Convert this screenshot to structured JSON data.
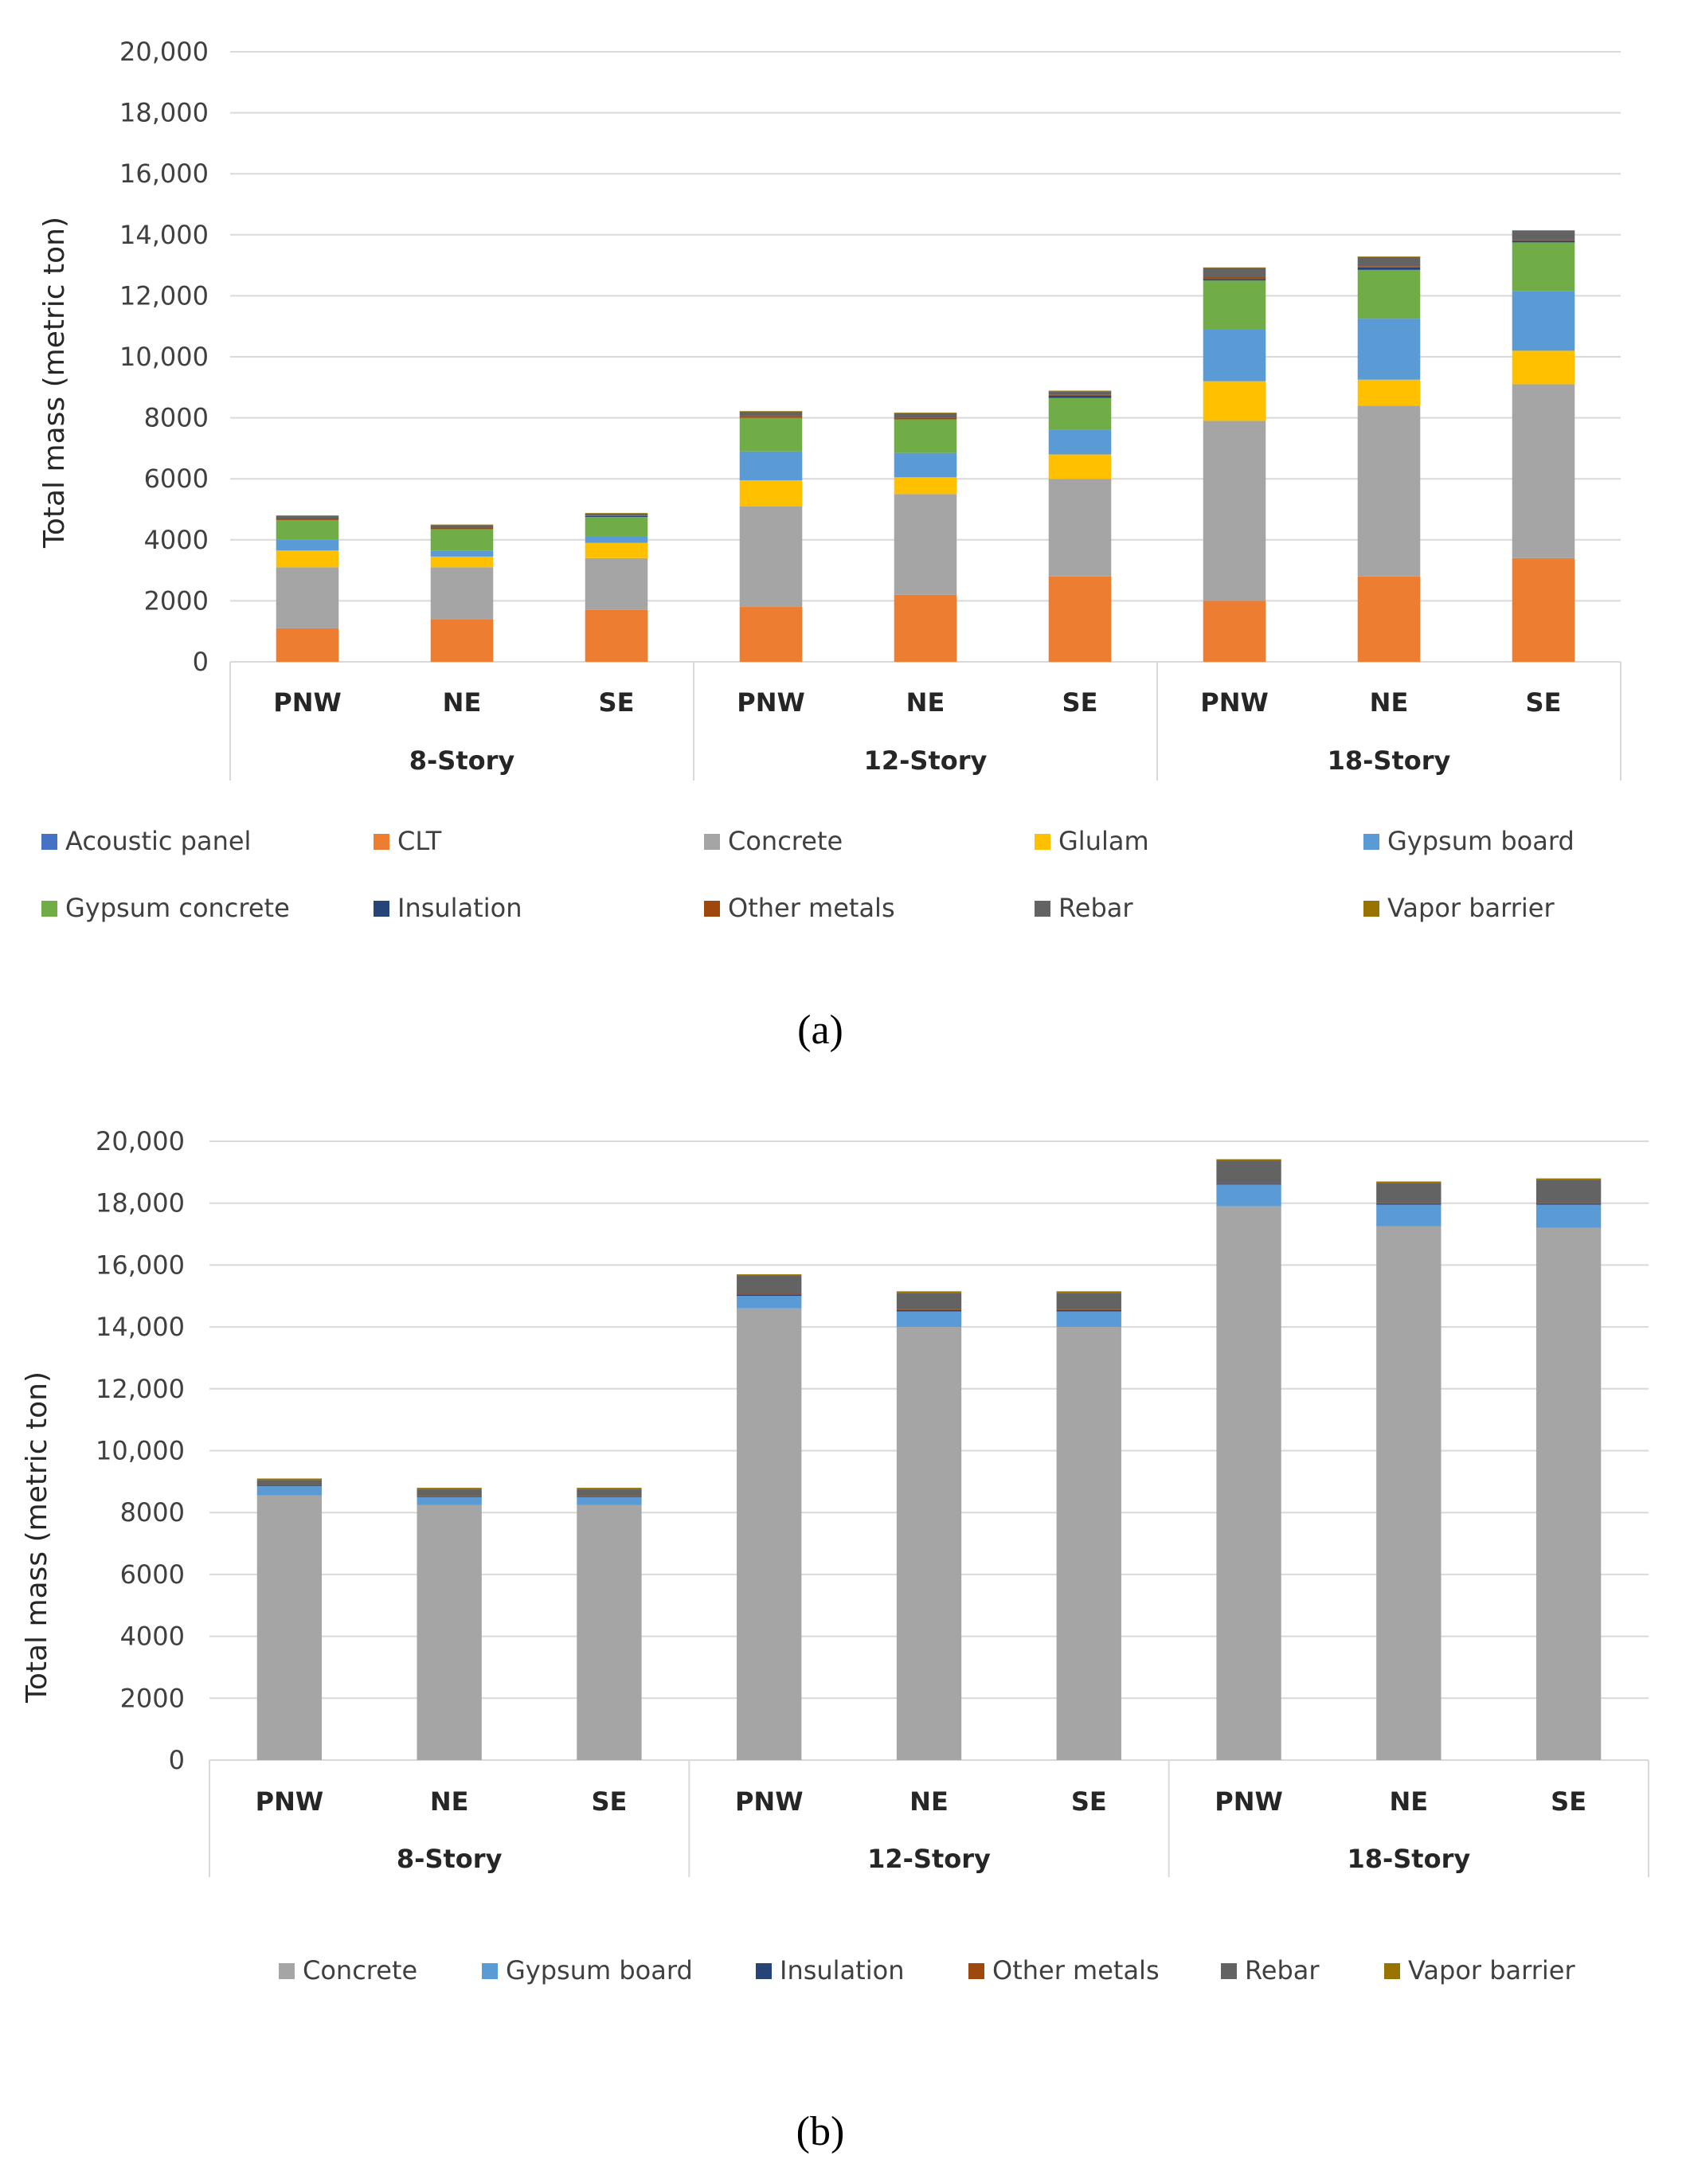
{
  "chart_data": [
    {
      "type": "bar",
      "stacked": true,
      "panel_label": "(a)",
      "title": "",
      "ylabel": "Total mass (metric ton)",
      "xlabel": "",
      "ylim": [
        0,
        20000
      ],
      "yticks": [
        "0",
        "2000",
        "4000",
        "6000",
        "8000",
        "10,000",
        "12,000",
        "14,000",
        "16,000",
        "18,000",
        "20,000"
      ],
      "grid": true,
      "legend_position": "bottom",
      "categories": [
        "PNW",
        "NE",
        "SE",
        "PNW",
        "NE",
        "SE",
        "PNW",
        "NE",
        "SE"
      ],
      "groups": [
        "8-Story",
        "12-Story",
        "18-Story"
      ],
      "series": [
        {
          "name": "CLT",
          "color": "#ED7D31",
          "values": [
            1100,
            1400,
            1700,
            1800,
            2200,
            2800,
            2000,
            2800,
            3400
          ]
        },
        {
          "name": "Concrete",
          "color": "#A5A5A5",
          "values": [
            2000,
            1700,
            1700,
            3300,
            3300,
            3200,
            5900,
            5600,
            5700
          ]
        },
        {
          "name": "Glulam",
          "color": "#FFC000",
          "values": [
            550,
            350,
            500,
            850,
            550,
            800,
            1300,
            850,
            1100
          ]
        },
        {
          "name": "Gypsum board",
          "color": "#5B9BD5",
          "values": [
            350,
            200,
            200,
            950,
            800,
            800,
            1700,
            2000,
            1950
          ]
        },
        {
          "name": "Acoustic panel",
          "color": "#4472C4",
          "values": [
            0,
            0,
            0,
            0,
            0,
            0,
            0,
            0,
            0
          ]
        },
        {
          "name": "Gypsum concrete",
          "color": "#70AD47",
          "values": [
            650,
            700,
            650,
            1100,
            1100,
            1050,
            1600,
            1600,
            1600
          ]
        },
        {
          "name": "Insulation",
          "color": "#264478",
          "values": [
            0,
            0,
            30,
            0,
            0,
            80,
            50,
            80,
            50
          ]
        },
        {
          "name": "Other metals",
          "color": "#9E480E",
          "values": [
            50,
            50,
            20,
            60,
            50,
            20,
            60,
            40,
            30
          ]
        },
        {
          "name": "Rebar",
          "color": "#636363",
          "values": [
            80,
            80,
            60,
            140,
            150,
            120,
            300,
            300,
            300
          ]
        },
        {
          "name": "Vapor barrier",
          "color": "#997300",
          "values": [
            20,
            20,
            20,
            20,
            20,
            20,
            20,
            20,
            20
          ]
        }
      ],
      "legend_order": [
        "Acoustic panel",
        "CLT",
        "Concrete",
        "Glulam",
        "Gypsum board",
        "Gypsum concrete",
        "Insulation",
        "Other metals",
        "Rebar",
        "Vapor barrier"
      ]
    },
    {
      "type": "bar",
      "stacked": true,
      "panel_label": "(b)",
      "title": "",
      "ylabel": "Total mass (metric ton)",
      "xlabel": "",
      "ylim": [
        0,
        20000
      ],
      "yticks": [
        "0",
        "2000",
        "4000",
        "6000",
        "8000",
        "10,000",
        "12,000",
        "14,000",
        "16,000",
        "18,000",
        "20,000"
      ],
      "grid": true,
      "legend_position": "bottom",
      "categories": [
        "PNW",
        "NE",
        "SE",
        "PNW",
        "NE",
        "SE",
        "PNW",
        "NE",
        "SE"
      ],
      "groups": [
        "8-Story",
        "12-Story",
        "18-Story"
      ],
      "series": [
        {
          "name": "Concrete",
          "color": "#A5A5A5",
          "values": [
            8550,
            8250,
            8250,
            14600,
            14000,
            14000,
            17900,
            17250,
            17200
          ]
        },
        {
          "name": "Gypsum board",
          "color": "#5B9BD5",
          "values": [
            300,
            250,
            250,
            400,
            500,
            500,
            700,
            700,
            750
          ]
        },
        {
          "name": "Insulation",
          "color": "#264478",
          "values": [
            20,
            20,
            20,
            50,
            50,
            50,
            30,
            30,
            30
          ]
        },
        {
          "name": "Other metals",
          "color": "#9E480E",
          "values": [
            10,
            10,
            10,
            20,
            20,
            20,
            20,
            20,
            20
          ]
        },
        {
          "name": "Rebar",
          "color": "#636363",
          "values": [
            170,
            220,
            220,
            580,
            530,
            530,
            720,
            650,
            750
          ]
        },
        {
          "name": "Vapor barrier",
          "color": "#997300",
          "values": [
            50,
            50,
            50,
            50,
            50,
            50,
            50,
            50,
            50
          ]
        }
      ],
      "legend_order": [
        "Concrete",
        "Gypsum board",
        "Insulation",
        "Other metals",
        "Rebar",
        "Vapor barrier"
      ]
    }
  ]
}
